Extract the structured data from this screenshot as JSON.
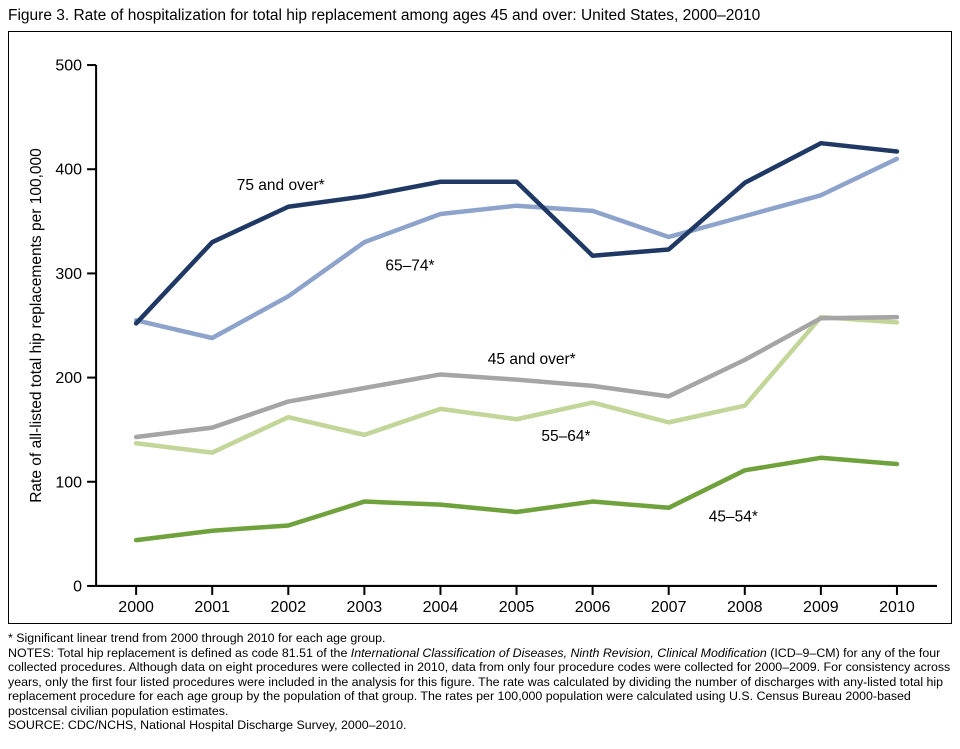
{
  "figure": {
    "title": "Figure 3. Rate of hospitalization for total hip replacement among ages 45 and over: United States, 2000–2010"
  },
  "footnotes": {
    "asterisk": "* Significant linear trend from 2000 through 2010 for each age group.",
    "notes_prefix": "NOTES: Total hip replacement is defined as code 81.51 of the ",
    "notes_italic": "International Classification of Diseases, Ninth Revision, Clinical Modification",
    "notes_suffix": " (ICD–9–CM) for any of the four collected procedures. Although data on eight procedures were collected in 2010, data from only four procedure codes were collected for 2000–2009. For consistency across years, only the first four listed procedures were included in the analysis for this figure. The rate was calculated by dividing the number of discharges with any-listed total hip replacement procedure for each age group by the population of that group. The rates per 100,000 population were calculated using U.S. Census Bureau 2000-based postcensal civilian population estimates.",
    "source": "SOURCE: CDC/NCHS, National Hospital Discharge Survey, 2000–2010."
  },
  "chart_data": {
    "type": "line",
    "title": "Figure 3. Rate of hospitalization for total hip replacement among ages 45 and over: United States, 2000–2010",
    "x": [
      2000,
      2001,
      2002,
      2003,
      2004,
      2005,
      2006,
      2007,
      2008,
      2009,
      2010
    ],
    "xlabel": "",
    "ylabel": "Rate of all-listed total hip replacements per 100,000",
    "ylim": [
      0,
      500
    ],
    "yticks": [
      0,
      100,
      200,
      300,
      400,
      500
    ],
    "grid": false,
    "legend": "inline-labels",
    "series": [
      {
        "id": "75-and-over",
        "name": "75 and over",
        "label": "75 and over*",
        "color": "#1F3864",
        "values": [
          252,
          330,
          364,
          374,
          388,
          388,
          317,
          323,
          387,
          425,
          417
        ],
        "label_at": {
          "year": 2001.9,
          "value": 380
        }
      },
      {
        "id": "65-74",
        "name": "65–74",
        "label": "65–74*",
        "color": "#8EA3CC",
        "values": [
          255,
          238,
          278,
          330,
          357,
          365,
          360,
          335,
          355,
          375,
          410
        ],
        "label_at": {
          "year": 2003.6,
          "value": 303
        }
      },
      {
        "id": "45-and-over",
        "name": "45 and over",
        "label": "45 and over*",
        "color": "#A5A5A5",
        "values": [
          143,
          152,
          177,
          190,
          203,
          198,
          192,
          182,
          217,
          257,
          258
        ],
        "label_at": {
          "year": 2005.2,
          "value": 213
        }
      },
      {
        "id": "55-64",
        "name": "55–64",
        "label": "55–64*",
        "color": "#C2D69A",
        "values": [
          137,
          128,
          162,
          145,
          170,
          160,
          176,
          157,
          173,
          258,
          253
        ],
        "label_at": {
          "year": 2005.65,
          "value": 139
        }
      },
      {
        "id": "45-54",
        "name": "45–54",
        "label": "45–54*",
        "color": "#6FA13C",
        "values": [
          44,
          53,
          58,
          81,
          78,
          71,
          81,
          75,
          111,
          123,
          117
        ],
        "label_at": {
          "year": 2007.85,
          "value": 62
        }
      }
    ]
  }
}
